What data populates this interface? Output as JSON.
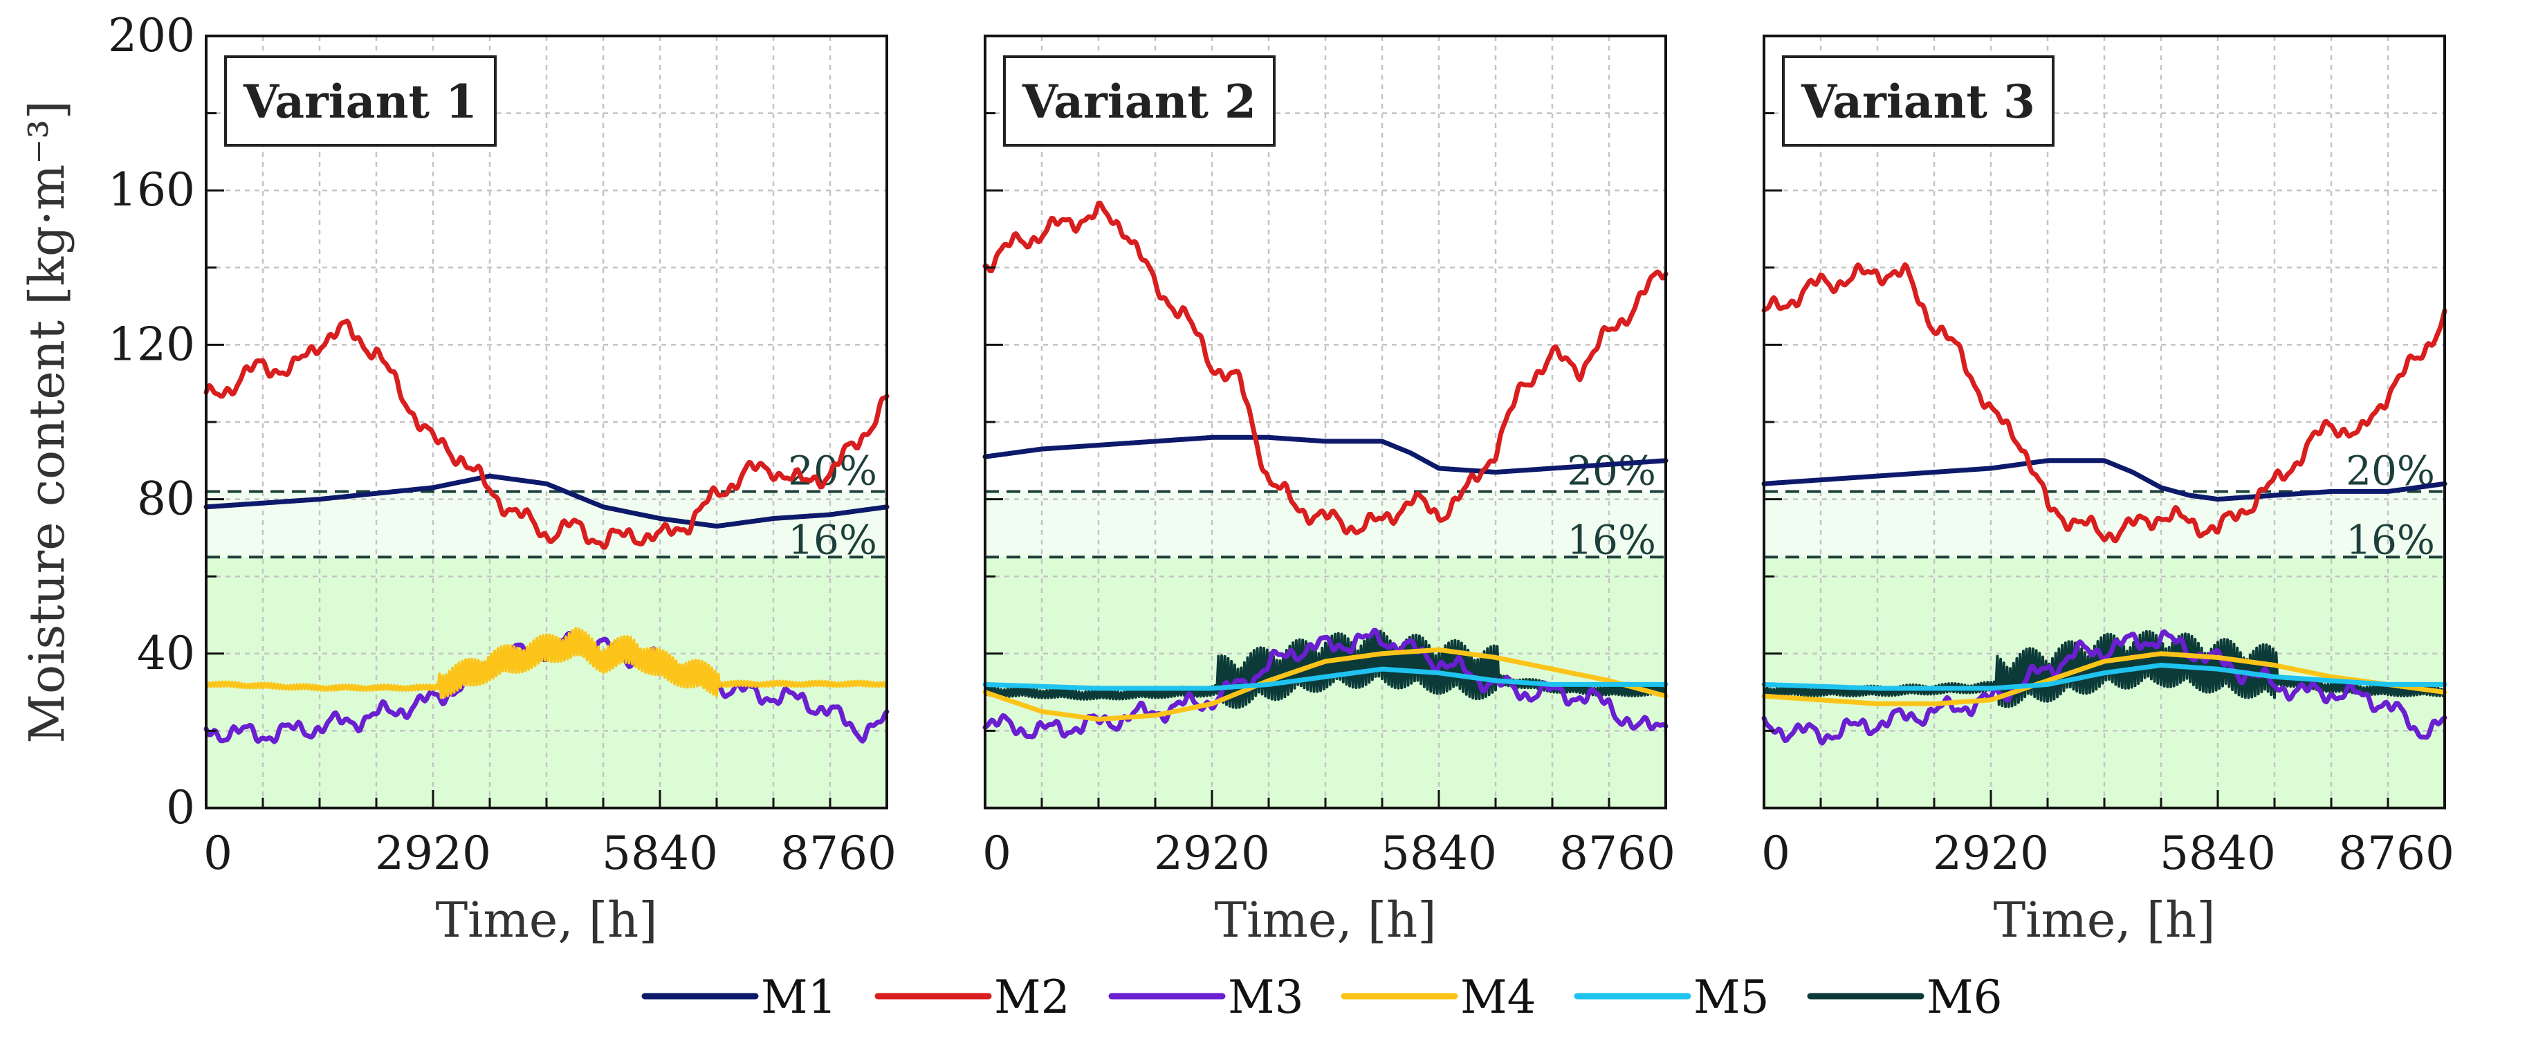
{
  "chart_data": {
    "type": "line",
    "ylabel": "Moisture content [kg·m⁻³]",
    "xlabel": "Time, [h]",
    "xlim": [
      0,
      8760
    ],
    "ylim": [
      0,
      200
    ],
    "xticks": [
      0,
      2920,
      5840,
      8760
    ],
    "yticks": [
      0,
      40,
      80,
      120,
      160,
      200
    ],
    "zone_colors": {
      "upper": "#f1fdf0",
      "lower": "#dcfcd6"
    },
    "thresholds": [
      {
        "label": "20%",
        "value": 82
      },
      {
        "label": "16%",
        "value": 65
      }
    ],
    "legend": [
      {
        "name": "M1",
        "color": "#0d1a6b"
      },
      {
        "name": "M2",
        "color": "#d81e1e"
      },
      {
        "name": "M3",
        "color": "#6a1fd0"
      },
      {
        "name": "M4",
        "color": "#fcc419"
      },
      {
        "name": "M5",
        "color": "#1fc3ef"
      },
      {
        "name": "M6",
        "color": "#0c3a38"
      }
    ],
    "panels": [
      {
        "title": "Variant 1",
        "series": [
          {
            "name": "M1",
            "x": [
              0,
              1460,
              2920,
              3650,
              4380,
              5110,
              5840,
              6570,
              7300,
              8030,
              8760
            ],
            "y": [
              78,
              80,
              83,
              86,
              84,
              78,
              75,
              73,
              75,
              76,
              78
            ]
          },
          {
            "name": "M2",
            "x": [
              0,
              365,
              730,
              1095,
              1460,
              1825,
              2190,
              2555,
              2920,
              3285,
              3650,
              4015,
              4380,
              4745,
              5110,
              5475,
              5840,
              6205,
              6570,
              6935,
              7300,
              7665,
              8030,
              8395,
              8760
            ],
            "y": [
              106,
              110,
              115,
              113,
              121,
              124,
              118,
              106,
              95,
              91,
              82,
              76,
              71,
              73,
              69,
              71,
              70,
              74,
              81,
              87,
              88,
              84,
              87,
              95,
              106
            ]
          },
          {
            "name": "M3",
            "x": [
              0,
              730,
              1460,
              2190,
              2920,
              3285,
              3650,
              4015,
              4380,
              4745,
              5110,
              5475,
              5840,
              6205,
              6570,
              6935,
              7300,
              7665,
              8030,
              8395,
              8760
            ],
            "y": [
              20,
              19,
              21,
              24,
              28,
              32,
              37,
              40,
              41,
              43,
              42,
              39,
              38,
              35,
              32,
              30,
              29,
              28,
              25,
              20,
              22
            ]
          },
          {
            "name": "M4",
            "x": [
              0,
              1460,
              2920,
              3285,
              3650,
              4015,
              4380,
              4745,
              5110,
              5475,
              5840,
              6205,
              6570,
              7300,
              8030,
              8760
            ],
            "y": [
              32,
              31,
              31,
              33,
              36,
              38,
              40,
              42,
              38,
              40,
              36,
              34,
              32,
              32,
              32,
              32
            ],
            "variation": 5
          }
        ]
      },
      {
        "title": "Variant 2",
        "series": [
          {
            "name": "M1",
            "x": [
              0,
              730,
              1460,
              2190,
              2920,
              3650,
              4380,
              5110,
              5475,
              5840,
              6570,
              7300,
              8030,
              8760
            ],
            "y": [
              91,
              93,
              94,
              95,
              96,
              96,
              95,
              95,
              92,
              88,
              87,
              88,
              89,
              90
            ]
          },
          {
            "name": "M2",
            "x": [
              0,
              365,
              730,
              1095,
              1460,
              1825,
              2190,
              2555,
              2920,
              3285,
              3650,
              4015,
              4380,
              4745,
              5110,
              5475,
              5840,
              6205,
              6570,
              6935,
              7300,
              7665,
              8030,
              8395,
              8760
            ],
            "y": [
              141,
              146,
              149,
              152,
              154,
              150,
              135,
              128,
              115,
              110,
              85,
              78,
              75,
              73,
              74,
              80,
              76,
              82,
              93,
              110,
              117,
              114,
              123,
              131,
              140
            ]
          },
          {
            "name": "M3",
            "x": [
              0,
              730,
              1460,
              2190,
              2920,
              3285,
              3650,
              4015,
              4380,
              4745,
              5110,
              5475,
              5840,
              6205,
              6570,
              6935,
              7300,
              7665,
              8030,
              8395,
              8760
            ],
            "y": [
              22,
              20,
              22,
              25,
              28,
              32,
              37,
              41,
              42,
              43,
              44,
              41,
              38,
              35,
              32,
              30,
              30,
              29,
              27,
              20,
              23
            ]
          },
          {
            "name": "M4",
            "x": [
              0,
              730,
              1460,
              2190,
              2920,
              3650,
              4380,
              5110,
              5840,
              6570,
              7300,
              8030,
              8760
            ],
            "y": [
              30,
              25,
              23,
              24,
              27,
              33,
              38,
              40,
              41,
              39,
              36,
              33,
              29
            ]
          },
          {
            "name": "M5",
            "x": [
              0,
              1460,
              2920,
              3650,
              4380,
              5110,
              5840,
              6570,
              7300,
              8030,
              8760
            ],
            "y": [
              32,
              31,
              31,
              32,
              34,
              36,
              35,
              33,
              32,
              32,
              32
            ]
          },
          {
            "name": "M6",
            "x": [
              0,
              1460,
              2920,
              3650,
              4380,
              5110,
              5840,
              6570,
              7300,
              8030,
              8760
            ],
            "y": [
              30,
              29,
              30,
              33,
              36,
              37,
              35,
              33,
              31,
              30,
              30
            ],
            "variation": 9
          }
        ]
      },
      {
        "title": "Variant 3",
        "series": [
          {
            "name": "M1",
            "x": [
              0,
              730,
              1460,
              2190,
              2920,
              3650,
              4015,
              4380,
              4745,
              5110,
              5475,
              5840,
              6570,
              7300,
              8030,
              8760
            ],
            "y": [
              84,
              85,
              86,
              87,
              88,
              90,
              90,
              90,
              87,
              83,
              81,
              80,
              81,
              82,
              82,
              84
            ]
          },
          {
            "name": "M2",
            "x": [
              0,
              365,
              730,
              1095,
              1460,
              1825,
              2190,
              2555,
              2920,
              3285,
              3650,
              4015,
              4380,
              4745,
              5110,
              5475,
              5840,
              6205,
              6570,
              6935,
              7300,
              7665,
              8030,
              8395,
              8760
            ],
            "y": [
              128,
              132,
              136,
              137,
              139,
              138,
              125,
              117,
              102,
              96,
              78,
              74,
              71,
              73,
              76,
              74,
              72,
              78,
              84,
              92,
              100,
              96,
              108,
              116,
              127
            ]
          },
          {
            "name": "M3",
            "x": [
              0,
              730,
              1460,
              2190,
              2920,
              3285,
              3650,
              4015,
              4380,
              4745,
              5110,
              5475,
              5840,
              6205,
              6570,
              6935,
              7300,
              7665,
              8030,
              8395,
              8760
            ],
            "y": [
              21,
              19,
              22,
              25,
              28,
              32,
              36,
              40,
              41,
              43,
              44,
              41,
              38,
              35,
              32,
              30,
              30,
              29,
              27,
              20,
              22
            ]
          },
          {
            "name": "M4",
            "x": [
              0,
              730,
              1460,
              2190,
              2920,
              3650,
              4380,
              5110,
              5840,
              6570,
              7300,
              8030,
              8760
            ],
            "y": [
              29,
              28,
              27,
              27,
              28,
              33,
              38,
              40,
              39,
              37,
              34,
              32,
              30
            ]
          },
          {
            "name": "M5",
            "x": [
              0,
              1460,
              2920,
              3650,
              4380,
              5110,
              5840,
              6570,
              7300,
              8030,
              8760
            ],
            "y": [
              32,
              31,
              31,
              32,
              35,
              37,
              36,
              34,
              33,
              32,
              32
            ]
          },
          {
            "name": "M6",
            "x": [
              0,
              1460,
              2920,
              3650,
              4380,
              5110,
              5840,
              6570,
              7300,
              8030,
              8760
            ],
            "y": [
              30,
              30,
              31,
              33,
              36,
              37,
              35,
              33,
              31,
              30,
              30
            ],
            "variation": 9
          }
        ]
      }
    ]
  }
}
